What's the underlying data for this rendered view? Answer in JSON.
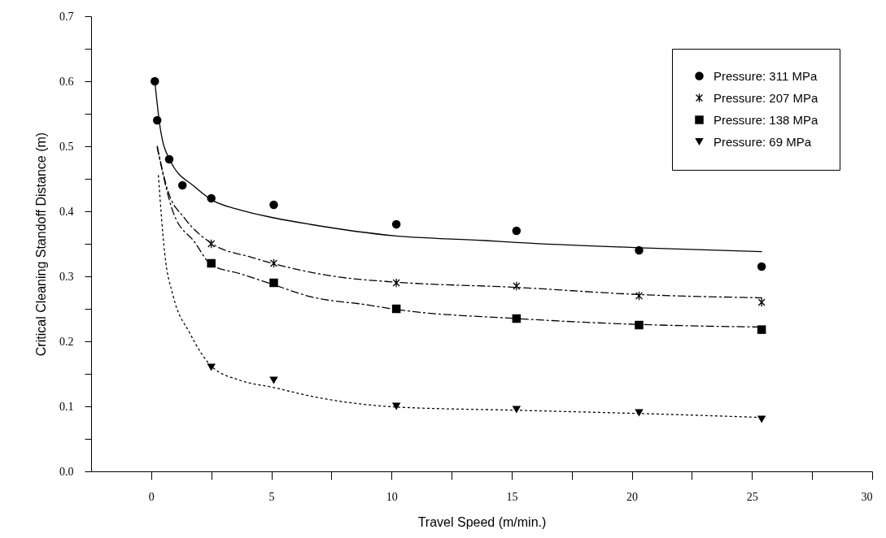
{
  "chart_data": {
    "type": "scatter",
    "xlabel": "Travel Speed (m/min.)",
    "ylabel": "Critical Cleaning Standoff Distance (m)",
    "xlim": [
      -2.5,
      30
    ],
    "xticks": [
      0,
      {
        "value": 2.5,
        "label": null
      },
      5,
      {
        "value": 7.5,
        "label": null
      },
      10,
      {
        "value": 12.5,
        "label": null
      },
      15,
      {
        "value": 17.5,
        "label": null
      },
      20,
      {
        "value": 22.5,
        "label": null
      },
      25,
      {
        "value": 27.5,
        "label": null
      },
      30
    ],
    "ylim": [
      0,
      0.7
    ],
    "yticks": [
      {
        "value": 0,
        "label": "0.0"
      },
      {
        "value": 0.05,
        "label": null
      },
      0.1,
      {
        "value": 0.15,
        "label": null
      },
      0.2,
      {
        "value": 0.25,
        "label": null
      },
      0.3,
      {
        "value": 0.35,
        "label": null
      },
      0.4,
      {
        "value": 0.45,
        "label": null
      },
      0.5,
      {
        "value": 0.55,
        "label": null
      },
      0.6,
      {
        "value": 0.65,
        "label": null
      },
      0.7
    ],
    "grid": false,
    "legend": "top right",
    "series": [
      {
        "type": "scatter",
        "name": "Pressure: 311 MPa",
        "color": "#000000",
        "marker": "circle",
        "x": [
          0.15,
          0.25,
          0.75,
          1.3,
          2.5,
          5.1,
          10.2,
          15.2,
          20.3,
          25.4
        ],
        "values": [
          0.6,
          0.54,
          0.48,
          0.44,
          0.42,
          0.41,
          0.38,
          0.37,
          0.34,
          0.315
        ]
      },
      {
        "type": "scatter",
        "name": "Pressure: 207 MPa",
        "color": "#000000",
        "marker": "cross",
        "x": [
          2.5,
          5.1,
          10.2,
          15.2,
          20.3,
          25.4
        ],
        "values": [
          0.35,
          0.32,
          0.29,
          0.285,
          0.27,
          0.26
        ]
      },
      {
        "type": "scatter",
        "name": "Pressure: 138 MPa",
        "color": "#000000",
        "marker": "square",
        "x": [
          2.5,
          5.1,
          10.2,
          15.2,
          20.3,
          25.4
        ],
        "values": [
          0.32,
          0.29,
          0.25,
          0.235,
          0.225,
          0.218
        ]
      },
      {
        "type": "scatter",
        "name": "Pressure: 69 MPa",
        "color": "#000000",
        "marker": "triangle",
        "x": [
          2.5,
          5.1,
          10.2,
          15.2,
          20.3,
          25.4
        ],
        "values": [
          0.16,
          0.14,
          0.1,
          0.095,
          0.09,
          0.08
        ]
      },
      {
        "type": "line",
        "color": "#000000",
        "line_style": "solid",
        "x": [
          0.15,
          0.38,
          0.79,
          1.8,
          2.5,
          3.7,
          5.1,
          6.6,
          10.2,
          13.9,
          15.2,
          20.3,
          25.4
        ],
        "values": [
          0.6,
          0.527,
          0.478,
          0.438,
          0.418,
          0.402,
          0.39,
          0.38,
          0.362,
          0.355,
          0.352,
          0.344,
          0.338
        ]
      },
      {
        "type": "line",
        "color": "#000000",
        "line_style": "dashed",
        "x": [
          0.25,
          0.68,
          1.4,
          2.5,
          4.2,
          7.8,
          10.2,
          15.2,
          20.3,
          25.4
        ],
        "values": [
          0.5,
          0.433,
          0.389,
          0.351,
          0.329,
          0.299,
          0.291,
          0.283,
          0.272,
          0.267
        ]
      },
      {
        "type": "line",
        "color": "#000000",
        "line_style": "dashed",
        "x": [
          0.25,
          0.92,
          1.8,
          2.5,
          3.7,
          5.1,
          6.6,
          9,
          10.2,
          15.2,
          20.3,
          25.4
        ],
        "values": [
          0.498,
          0.398,
          0.353,
          0.318,
          0.304,
          0.287,
          0.269,
          0.256,
          0.249,
          0.235,
          0.226,
          0.222
        ]
      },
      {
        "type": "line",
        "color": "#000000",
        "line_style": "dotted",
        "x": [
          0.3,
          0.56,
          0.92,
          1.6,
          2.5,
          3.7,
          5.1,
          6.6,
          10.2,
          15.2,
          20.3,
          25.4
        ],
        "values": [
          0.455,
          0.336,
          0.269,
          0.213,
          0.162,
          0.14,
          0.129,
          0.116,
          0.099,
          0.094,
          0.089,
          0.083
        ]
      }
    ]
  }
}
